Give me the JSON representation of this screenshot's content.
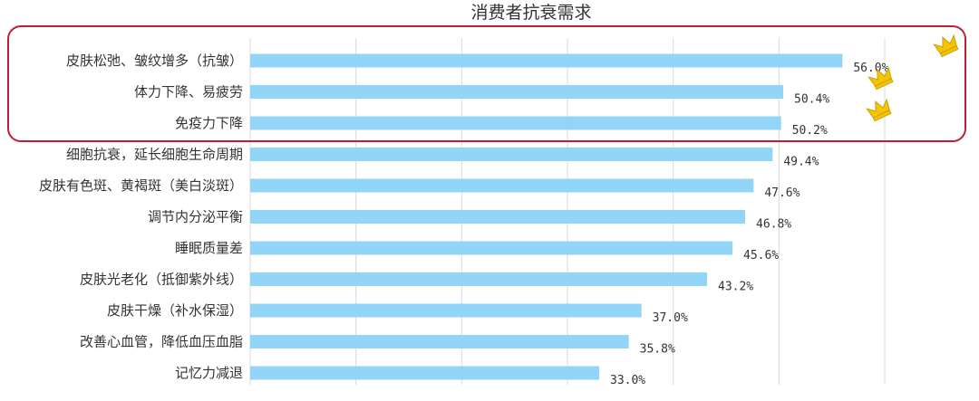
{
  "chart_data": {
    "type": "bar",
    "orientation": "horizontal",
    "title": "消费者抗衰需求",
    "categories": [
      "皮肤松弛、皱纹增多（抗皱）",
      "体力下降、易疲劳",
      "免疫力下降",
      "细胞抗衰，延长细胞生命周期",
      "皮肤有色斑、黄褐斑（美白淡斑）",
      "调节内分泌平衡",
      "睡眠质量差",
      "皮肤光老化（抵御紫外线）",
      "皮肤干燥（补水保湿）",
      "改善心血管，降低血压血脂",
      "记忆力减退"
    ],
    "values": [
      56.0,
      50.4,
      50.2,
      49.4,
      47.6,
      46.8,
      45.6,
      43.2,
      37.0,
      35.8,
      33.0
    ],
    "data_labels": [
      "56.0%",
      "50.4%",
      "50.2%",
      "49.4%",
      "47.6%",
      "46.8%",
      "45.6%",
      "43.2%",
      "37.0%",
      "35.8%",
      "33.0%"
    ],
    "xlim": [
      0,
      60
    ],
    "grid": true,
    "bar_color": "#92d5f7",
    "highlight": {
      "top_n": 3,
      "box_color": "#c0202d",
      "crown_icon": "crown-icon",
      "crown_color": "#f5c400"
    }
  }
}
